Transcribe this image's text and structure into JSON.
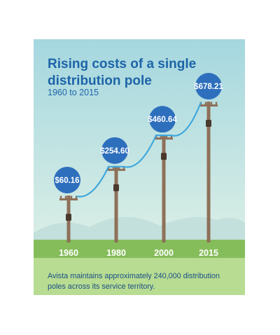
{
  "infographic": {
    "title": "Rising costs of a single distribution pole",
    "subtitle": "1960 to 2015",
    "footnote": "Avista maintains approximately 240,000 distribution poles across its service territory."
  },
  "colors": {
    "sky_top": "#a5d7df",
    "sky_bottom": "#dcefe6",
    "mountains": "#c3e0dd",
    "grass": "#86bd5b",
    "grass_bottom": "#b7dc92",
    "bubble": "#2e6fbd",
    "wire": "#3fa7dc",
    "pole": "#8e7058",
    "title": "#1d64a8"
  },
  "chart_data": {
    "type": "bar",
    "title": "Rising costs of a single distribution pole",
    "subtitle": "1960 to 2015",
    "categories": [
      "1960",
      "1980",
      "2000",
      "2015"
    ],
    "values": [
      60.16,
      254.6,
      460.64,
      678.21
    ],
    "value_labels": [
      "$60.16",
      "$254.60",
      "$460.64",
      "$678.21"
    ],
    "unit": "USD"
  }
}
